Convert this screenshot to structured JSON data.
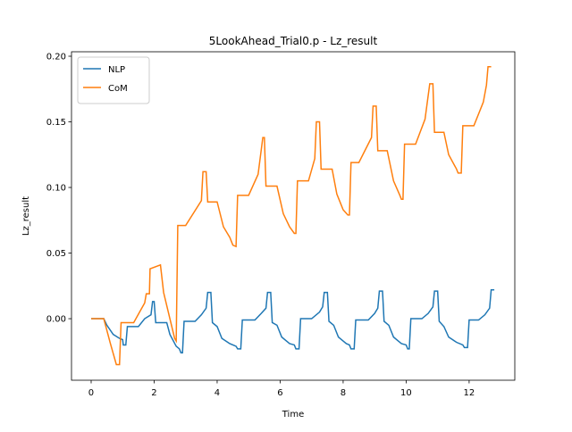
{
  "chart_data": {
    "type": "line",
    "title": "5LookAhead_Trial0.p - Lz_result",
    "x_label": "Time",
    "y_label": "Lz_result",
    "xlim": [
      -0.624,
      13.45
    ],
    "ylim": [
      -0.0469,
      0.2034
    ],
    "xticks": [
      0,
      2,
      4,
      6,
      8,
      10,
      12
    ],
    "yticks": [
      {
        "value": 0,
        "label": "0.00"
      },
      {
        "value": 0.05,
        "label": "0.05"
      },
      {
        "value": 0.1,
        "label": "0.10"
      },
      {
        "value": 0.15,
        "label": "0.15"
      },
      {
        "value": 0.2,
        "label": "0.20"
      }
    ],
    "legend": "upper left",
    "series": [
      {
        "name": "NLP",
        "color": "#1f77b4",
        "x": [
          0,
          0.4,
          0.5,
          0.7,
          0.9,
          1.0,
          1.02,
          1.1,
          1.15,
          1.5,
          1.7,
          1.9,
          1.95,
          2.0,
          2.05,
          2.4,
          2.5,
          2.7,
          2.8,
          2.85,
          2.9,
          2.95,
          3.3,
          3.5,
          3.65,
          3.7,
          3.8,
          3.85,
          4.0,
          4.15,
          4.4,
          4.6,
          4.65,
          4.75,
          4.8,
          5.2,
          5.4,
          5.55,
          5.6,
          5.7,
          5.75,
          5.9,
          6.05,
          6.3,
          6.45,
          6.5,
          6.6,
          6.65,
          7.0,
          7.25,
          7.35,
          7.4,
          7.5,
          7.55,
          7.7,
          7.85,
          8.1,
          8.2,
          8.25,
          8.35,
          8.4,
          8.8,
          9.0,
          9.1,
          9.15,
          9.25,
          9.3,
          9.45,
          9.6,
          9.85,
          10.0,
          10.05,
          10.1,
          10.15,
          10.5,
          10.7,
          10.85,
          10.9,
          11.0,
          11.05,
          11.2,
          11.35,
          11.6,
          11.8,
          11.85,
          11.95,
          12.0,
          12.3,
          12.5,
          12.65,
          12.7,
          12.8
        ],
        "values": [
          0,
          0,
          -0.005,
          -0.012,
          -0.015,
          -0.016,
          -0.02,
          -0.02,
          -0.006,
          -0.006,
          0.0,
          0.003,
          0.013,
          0.013,
          -0.003,
          -0.003,
          -0.012,
          -0.021,
          -0.023,
          -0.026,
          -0.026,
          -0.002,
          -0.002,
          0.003,
          0.008,
          0.02,
          0.02,
          -0.003,
          -0.006,
          -0.015,
          -0.019,
          -0.021,
          -0.023,
          -0.023,
          -0.001,
          -0.001,
          0.004,
          0.008,
          0.02,
          0.02,
          -0.003,
          -0.005,
          -0.014,
          -0.019,
          -0.02,
          -0.023,
          -0.023,
          0.0,
          0.0,
          0.005,
          0.009,
          0.02,
          0.02,
          -0.002,
          -0.005,
          -0.014,
          -0.019,
          -0.02,
          -0.023,
          -0.023,
          -0.001,
          -0.001,
          0.004,
          0.008,
          0.021,
          0.021,
          -0.002,
          -0.005,
          -0.014,
          -0.019,
          -0.02,
          -0.023,
          -0.023,
          0.0,
          0.0,
          0.004,
          0.009,
          0.021,
          0.021,
          -0.002,
          -0.006,
          -0.014,
          -0.018,
          -0.02,
          -0.022,
          -0.022,
          -0.001,
          -0.001,
          0.003,
          0.008,
          0.022,
          0.022
        ]
      },
      {
        "name": "CoM",
        "color": "#ff7f0e",
        "x": [
          0,
          0.4,
          0.6,
          0.8,
          0.9,
          0.95,
          1.35,
          1.7,
          1.75,
          1.85,
          1.87,
          2.2,
          2.3,
          2.5,
          2.65,
          2.7,
          2.75,
          3.0,
          3.5,
          3.55,
          3.65,
          3.7,
          4.0,
          4.2,
          4.4,
          4.5,
          4.6,
          4.65,
          5.0,
          5.3,
          5.45,
          5.5,
          5.55,
          5.9,
          6.1,
          6.3,
          6.45,
          6.5,
          6.55,
          6.9,
          7.1,
          7.15,
          7.25,
          7.3,
          7.65,
          7.8,
          8.0,
          8.15,
          8.2,
          8.25,
          8.5,
          8.9,
          8.95,
          9.05,
          9.1,
          9.4,
          9.6,
          9.8,
          9.85,
          9.9,
          9.95,
          10.3,
          10.6,
          10.75,
          10.85,
          10.9,
          11.2,
          11.35,
          11.6,
          11.65,
          11.75,
          11.8,
          12.15,
          12.45,
          12.55,
          12.6,
          12.7
        ],
        "values": [
          0,
          0,
          -0.018,
          -0.035,
          -0.035,
          -0.003,
          -0.003,
          0.012,
          0.019,
          0.019,
          0.038,
          0.041,
          0.02,
          0.0,
          -0.015,
          -0.017,
          0.071,
          0.071,
          0.09,
          0.112,
          0.112,
          0.089,
          0.089,
          0.07,
          0.062,
          0.056,
          0.055,
          0.094,
          0.094,
          0.11,
          0.138,
          0.138,
          0.101,
          0.101,
          0.08,
          0.07,
          0.065,
          0.065,
          0.105,
          0.105,
          0.122,
          0.15,
          0.15,
          0.114,
          0.114,
          0.095,
          0.083,
          0.079,
          0.079,
          0.119,
          0.119,
          0.138,
          0.162,
          0.162,
          0.128,
          0.128,
          0.105,
          0.094,
          0.091,
          0.091,
          0.133,
          0.133,
          0.152,
          0.179,
          0.179,
          0.142,
          0.142,
          0.125,
          0.114,
          0.111,
          0.111,
          0.147,
          0.147,
          0.165,
          0.178,
          0.192,
          0.192
        ]
      }
    ]
  }
}
